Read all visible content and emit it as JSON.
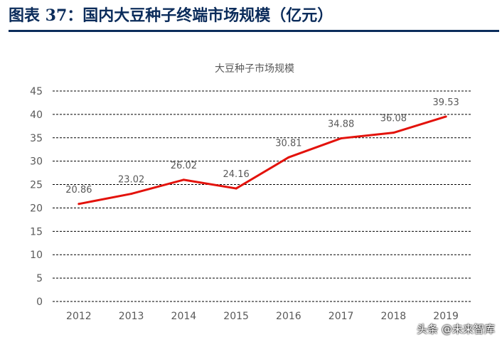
{
  "figure": {
    "title": "图表 37：国内大豆种子终端市场规模（亿元）"
  },
  "watermark": "头条 @未来智库",
  "colors": {
    "line": "#e3120b",
    "grid": "#000000",
    "text": "#595959",
    "title": "#0b2c5b"
  },
  "chart_data": {
    "type": "line",
    "title": "大豆种子市场规模",
    "xlabel": "",
    "ylabel": "",
    "categories": [
      "2012",
      "2013",
      "2014",
      "2015",
      "2016",
      "2017",
      "2018",
      "2019"
    ],
    "series": [
      {
        "values": [
          20.86,
          23.02,
          26.02,
          24.16,
          30.81,
          34.88,
          36.08,
          39.53
        ]
      }
    ],
    "data_labels": [
      "20.86",
      "23.02",
      "26.02",
      "24.16",
      "30.81",
      "34.88",
      "36.08",
      "39.53"
    ],
    "ylim": [
      0,
      45
    ],
    "yticks": [
      0,
      5,
      10,
      15,
      20,
      25,
      30,
      35,
      40,
      45
    ],
    "grid": true,
    "grid_style": "dashed",
    "legend": "none"
  }
}
